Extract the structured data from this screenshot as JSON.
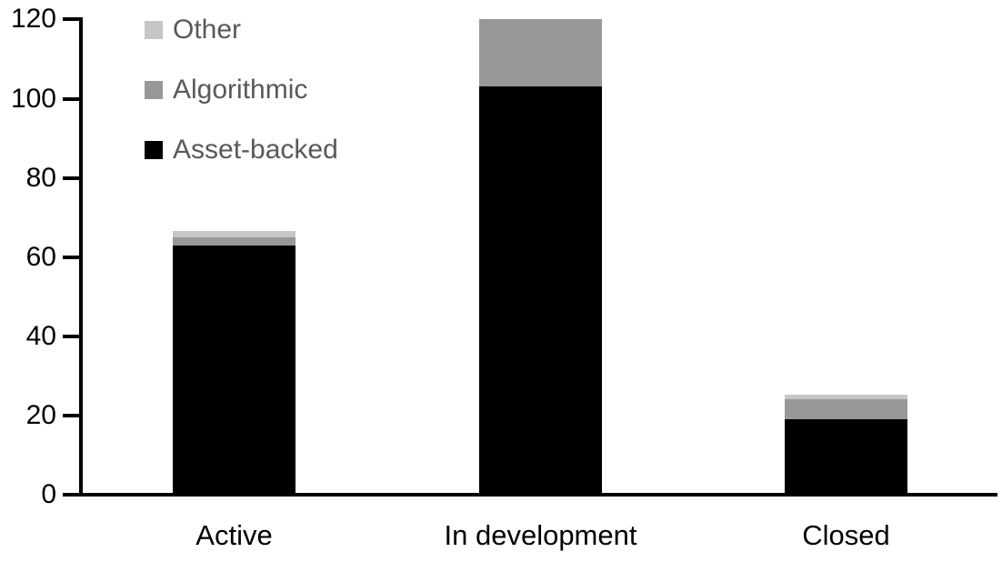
{
  "chart_data": {
    "type": "bar",
    "stacked": true,
    "title": "",
    "xlabel": "",
    "ylabel": "",
    "categories": [
      "Active",
      "In development",
      "Closed"
    ],
    "series": [
      {
        "name": "Asset-backed",
        "color": "#000000",
        "values": [
          63,
          103,
          19
        ]
      },
      {
        "name": "Algorithmic",
        "color": "#989898",
        "values": [
          2,
          17,
          5
        ]
      },
      {
        "name": "Other",
        "color": "#C6C6C6",
        "values": [
          1.5,
          0,
          1.3
        ]
      }
    ],
    "ylim": [
      0,
      120
    ],
    "yticks": [
      0,
      20,
      40,
      60,
      80,
      100,
      120
    ],
    "grid": false,
    "legend_position": "top-left-inside",
    "legend_items": [
      {
        "label": "Other",
        "color": "#C6C6C6"
      },
      {
        "label": "Algorithmic",
        "color": "#989898"
      },
      {
        "label": "Asset-backed",
        "color": "#000000"
      }
    ]
  },
  "colors": {
    "axis": "#000000",
    "legend_text": "#595959",
    "background": "#ffffff"
  }
}
